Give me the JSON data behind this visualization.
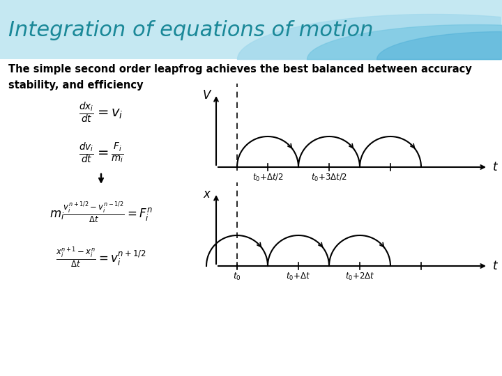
{
  "title": "Integration of equations of motion",
  "subtitle": "The simple second order leapfrog achieves the best balanced between accuracy\nstability, and efficiency",
  "title_color": "#1a8898",
  "title_fontsize": 22,
  "subtitle_fontsize": 10.5,
  "bg_color": "white",
  "banner_color1": "#c8e8f0",
  "banner_color2": "#80cce0",
  "banner_color3": "#50b8d0",
  "v_label": "V",
  "x_label": "x",
  "t_label": "t",
  "v_tick_labels": [
    "$t_0+\\Delta t/2$",
    "$t_0+3\\Delta t/2$"
  ],
  "x_tick_labels": [
    "$t_0$",
    "$t_0+\\Delta t$",
    "$t_0+2\\Delta t$"
  ]
}
